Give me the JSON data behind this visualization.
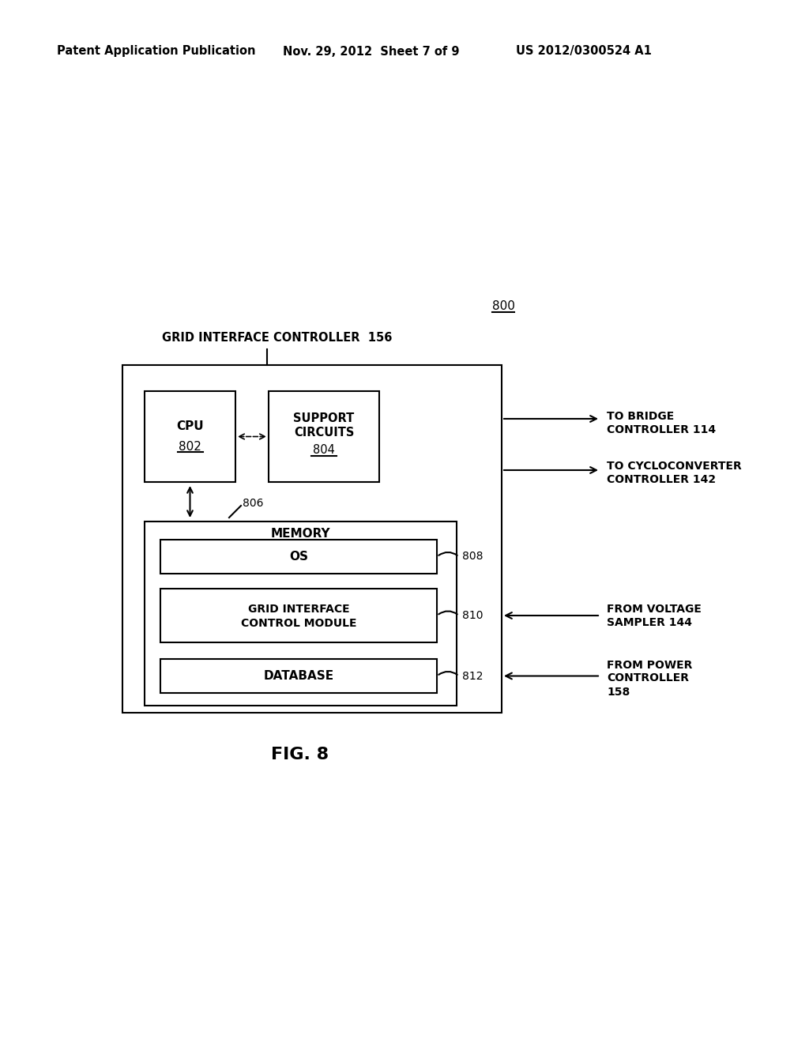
{
  "bg_color": "#ffffff",
  "header_left": "Patent Application Publication",
  "header_mid": "Nov. 29, 2012  Sheet 7 of 9",
  "header_right": "US 2012/0300524 A1",
  "fig_label": "FIG. 8",
  "fig_number": "800",
  "grid_interface_label": "GRID INTERFACE CONTROLLER  156",
  "cpu_line1": "CPU",
  "cpu_line2": "802",
  "support_line1": "SUPPORT",
  "support_line2": "CIRCUITS",
  "support_line3": "804",
  "memory_label": "MEMORY",
  "os_label": "OS",
  "grid_ctrl_line1": "GRID INTERFACE",
  "grid_ctrl_line2": "CONTROL MODULE",
  "db_label": "DATABASE",
  "label_806": "806",
  "label_808": "808",
  "label_810": "810",
  "label_812": "812",
  "to_bridge_line1": "TO BRIDGE",
  "to_bridge_line2": "CONTROLLER 114",
  "to_cyclo_line1": "TO CYCLOCONVERTER",
  "to_cyclo_line2": "CONTROLLER 142",
  "from_voltage_line1": "FROM VOLTAGE",
  "from_voltage_line2": "SAMPLER 144",
  "from_power_line1": "FROM POWER",
  "from_power_line2": "CONTROLLER",
  "from_power_line3": "158"
}
